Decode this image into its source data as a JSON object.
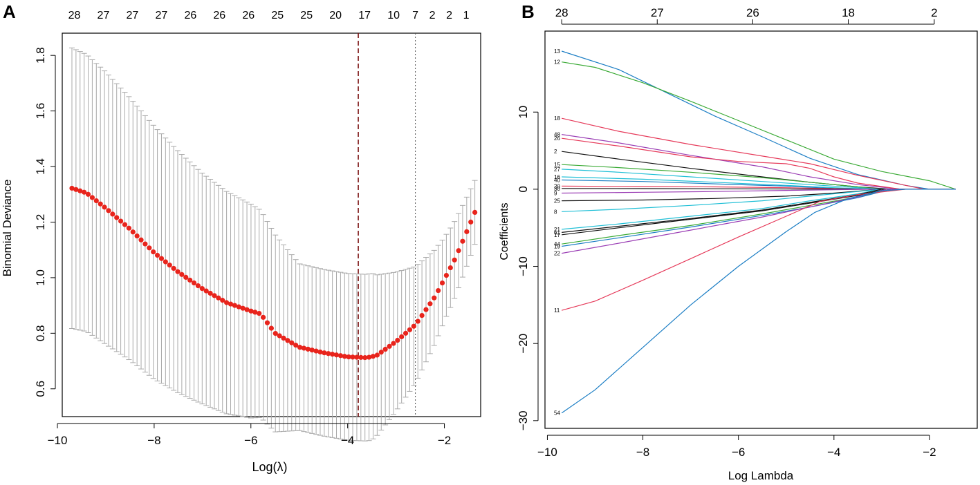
{
  "chart_data": [
    {
      "panel_label": "A",
      "type": "scatter",
      "xlabel": "Log(λ)",
      "ylabel": "Binomial Deviance",
      "xlim": [
        -9.9,
        -1.25
      ],
      "ylim": [
        0.5,
        1.88
      ],
      "xticks": [
        -10,
        -8,
        -6,
        -4,
        -2
      ],
      "yticks": [
        0.6,
        0.8,
        1.0,
        1.2,
        1.4,
        1.6,
        1.8
      ],
      "xtick_labels": [
        "−10",
        "−8",
        "−6",
        "−4",
        "−2"
      ],
      "ytick_labels": [
        "0.6",
        "0.8",
        "1.0",
        "1.2",
        "1.4",
        "1.6",
        "1.8"
      ],
      "top_labels": [
        "28",
        "27",
        "27",
        "27",
        "26",
        "26",
        "26",
        "25",
        "25",
        "20",
        "17",
        "10",
        "7",
        "2",
        "2",
        "1"
      ],
      "top_label_x": [
        -9.65,
        -9.05,
        -8.45,
        -7.85,
        -7.25,
        -6.65,
        -6.05,
        -5.45,
        -4.85,
        -4.25,
        -3.65,
        -3.05,
        -2.6,
        -2.25,
        -1.9,
        -1.55
      ],
      "lambda_min": -3.78,
      "lambda_1se": -2.6,
      "curve_knots": [
        [
          -9.7,
          1.322
        ],
        [
          -9.4,
          1.305
        ],
        [
          -9.0,
          1.25
        ],
        [
          -8.5,
          1.175
        ],
        [
          -8.0,
          1.09
        ],
        [
          -7.5,
          1.02
        ],
        [
          -7.0,
          0.96
        ],
        [
          -6.5,
          0.91
        ],
        [
          -6.0,
          0.88
        ],
        [
          -5.8,
          0.87
        ],
        [
          -5.5,
          0.8
        ],
        [
          -5.0,
          0.75
        ],
        [
          -4.5,
          0.73
        ],
        [
          -4.0,
          0.715
        ],
        [
          -3.6,
          0.712
        ],
        [
          -3.4,
          0.72
        ],
        [
          -3.0,
          0.77
        ],
        [
          -2.6,
          0.83
        ],
        [
          -2.2,
          0.93
        ],
        [
          -1.8,
          1.06
        ],
        [
          -1.6,
          1.14
        ],
        [
          -1.37,
          1.235
        ]
      ],
      "band_knots": [
        [
          -9.7,
          0.505
        ],
        [
          -9.0,
          0.49
        ],
        [
          -8.0,
          0.455
        ],
        [
          -7.0,
          0.415
        ],
        [
          -6.0,
          0.385
        ],
        [
          -5.5,
          0.355
        ],
        [
          -5.0,
          0.3
        ],
        [
          -4.5,
          0.3
        ],
        [
          -4.0,
          0.3
        ],
        [
          -3.5,
          0.3
        ],
        [
          -3.0,
          0.25
        ],
        [
          -2.5,
          0.2
        ],
        [
          -2.0,
          0.15
        ],
        [
          -1.37,
          0.115
        ]
      ],
      "point_count": 100
    },
    {
      "panel_label": "B",
      "type": "line",
      "xlabel": "Log Lambda",
      "ylabel": "Coefficients",
      "xlim": [
        -10.05,
        -1.0
      ],
      "ylim": [
        -31,
        20.5
      ],
      "xticks": [
        -10,
        -8,
        -6,
        -4,
        -2
      ],
      "yticks": [
        -30,
        -20,
        -10,
        0,
        10
      ],
      "xtick_labels": [
        "−10",
        "−8",
        "−6",
        "−4",
        "−2"
      ],
      "ytick_labels": [
        "−30",
        "−20",
        "−10",
        "0",
        "10"
      ],
      "top_labels": [
        "28",
        "27",
        "26",
        "18",
        "2"
      ],
      "top_label_x": [
        -9.7,
        -7.7,
        -5.7,
        -3.7,
        -1.9
      ],
      "x_start": -9.7,
      "series": [
        {
          "name": "13",
          "color": "#1a7dc4",
          "end": -2.0,
          "knots": [
            [
              -9.7,
              17.9
            ],
            [
              -8.5,
              15.5
            ],
            [
              -7.5,
              12.5
            ],
            [
              -6.5,
              9.5
            ],
            [
              -5.5,
              6.8
            ],
            [
              -4.5,
              4.0
            ],
            [
              -3.5,
              1.9
            ],
            [
              -2.5,
              0.5
            ],
            [
              -2.0,
              0
            ]
          ]
        },
        {
          "name": "12",
          "color": "#3aaa35",
          "end": -1.45,
          "knots": [
            [
              -9.7,
              16.5
            ],
            [
              -9.0,
              15.8
            ],
            [
              -8.0,
              13.8
            ],
            [
              -7.0,
              11.4
            ],
            [
              -6.0,
              8.9
            ],
            [
              -5.0,
              6.4
            ],
            [
              -4.0,
              3.9
            ],
            [
              -3.0,
              2.3
            ],
            [
              -2.0,
              1.1
            ],
            [
              -1.45,
              0
            ]
          ]
        },
        {
          "name": "18",
          "color": "#e63a5a",
          "end": -2.1,
          "knots": [
            [
              -9.7,
              9.2
            ],
            [
              -8.5,
              7.5
            ],
            [
              -7.0,
              5.8
            ],
            [
              -5.5,
              4.3
            ],
            [
              -4.5,
              3.3
            ],
            [
              -3.5,
              1.8
            ],
            [
              -2.5,
              0.5
            ],
            [
              -2.1,
              0
            ]
          ]
        },
        {
          "name": "48",
          "color": "#9b3fb5",
          "end": -2.6,
          "knots": [
            [
              -9.7,
              7.1
            ],
            [
              -8.5,
              6.0
            ],
            [
              -7.0,
              4.4
            ],
            [
              -5.5,
              2.9
            ],
            [
              -4.5,
              1.6
            ],
            [
              -3.5,
              0.6
            ],
            [
              -2.6,
              0
            ]
          ]
        },
        {
          "name": "26",
          "color": "#e63a5a",
          "end": -2.6,
          "knots": [
            [
              -9.7,
              6.6
            ],
            [
              -8.5,
              5.6
            ],
            [
              -7.0,
              4.2
            ],
            [
              -6.0,
              3.6
            ],
            [
              -5.0,
              3.3
            ],
            [
              -4.5,
              2.7
            ],
            [
              -4.0,
              1.6
            ],
            [
              -3.5,
              0.8
            ],
            [
              -2.6,
              0
            ]
          ]
        },
        {
          "name": "2",
          "color": "#111111",
          "end": -2.8,
          "knots": [
            [
              -9.7,
              4.9
            ],
            [
              -8.5,
              3.9
            ],
            [
              -7.0,
              2.7
            ],
            [
              -5.5,
              1.6
            ],
            [
              -4.5,
              0.9
            ],
            [
              -3.5,
              0.3
            ],
            [
              -2.8,
              0
            ]
          ]
        },
        {
          "name": "15",
          "color": "#3aaa35",
          "end": -3.0,
          "knots": [
            [
              -9.7,
              3.2
            ],
            [
              -8.5,
              2.8
            ],
            [
              -7.0,
              2.2
            ],
            [
              -5.5,
              1.5
            ],
            [
              -4.5,
              0.9
            ],
            [
              -3.5,
              0.3
            ],
            [
              -3.0,
              0
            ]
          ]
        },
        {
          "name": "27",
          "color": "#1fbfd6",
          "end": -3.0,
          "knots": [
            [
              -9.7,
              2.6
            ],
            [
              -8.5,
              2.2
            ],
            [
              -7.0,
              1.6
            ],
            [
              -5.5,
              1.0
            ],
            [
              -4.5,
              0.6
            ],
            [
              -3.5,
              0.2
            ],
            [
              -3.0,
              0
            ]
          ]
        },
        {
          "name": "16",
          "color": "#1fbfd6",
          "end": -3.2,
          "knots": [
            [
              -9.7,
              1.6
            ],
            [
              -8.0,
              1.3
            ],
            [
              -6.5,
              0.9
            ],
            [
              -5.0,
              0.5
            ],
            [
              -4.0,
              0.2
            ],
            [
              -3.2,
              0
            ]
          ]
        },
        {
          "name": "40",
          "color": "#1a7dc4",
          "end": -3.2,
          "knots": [
            [
              -9.7,
              1.2
            ],
            [
              -8.0,
              1.0
            ],
            [
              -6.5,
              0.7
            ],
            [
              -5.0,
              0.4
            ],
            [
              -4.0,
              0.1
            ],
            [
              -3.2,
              0
            ]
          ]
        },
        {
          "name": "20",
          "color": "#e63a5a",
          "end": -3.4,
          "knots": [
            [
              -9.7,
              0.4
            ],
            [
              -8.0,
              0.35
            ],
            [
              -6.5,
              0.3
            ],
            [
              -5.0,
              0.2
            ],
            [
              -3.4,
              0
            ]
          ]
        },
        {
          "name": "30",
          "color": "#111111",
          "end": -3.4,
          "knots": [
            [
              -9.7,
              0.1
            ],
            [
              -8.0,
              0.08
            ],
            [
              -6.0,
              0.05
            ],
            [
              -3.4,
              0
            ]
          ]
        },
        {
          "name": "9",
          "color": "#9b3fb5",
          "end": -3.2,
          "knots": [
            [
              -9.7,
              -0.5
            ],
            [
              -8.0,
              -0.4
            ],
            [
              -6.5,
              -0.3
            ],
            [
              -5.0,
              -0.15
            ],
            [
              -3.2,
              0
            ]
          ]
        },
        {
          "name": "25",
          "color": "#111111",
          "end": -3.0,
          "knots": [
            [
              -9.7,
              -1.5
            ],
            [
              -8.0,
              -1.4
            ],
            [
              -6.5,
              -1.2
            ],
            [
              -5.0,
              -0.9
            ],
            [
              -4.0,
              -0.5
            ],
            [
              -3.0,
              0
            ]
          ]
        },
        {
          "name": "8",
          "color": "#1fbfd6",
          "end": -3.0,
          "knots": [
            [
              -9.7,
              -2.9
            ],
            [
              -8.5,
              -2.6
            ],
            [
              -7.0,
              -2.1
            ],
            [
              -5.5,
              -1.5
            ],
            [
              -4.5,
              -0.9
            ],
            [
              -3.5,
              -0.3
            ],
            [
              -3.0,
              0
            ]
          ]
        },
        {
          "name": "21",
          "color": "#1fbfd6",
          "end": -3.0,
          "knots": [
            [
              -9.7,
              -5.2
            ],
            [
              -8.5,
              -4.5
            ],
            [
              -7.0,
              -3.5
            ],
            [
              -5.5,
              -2.5
            ],
            [
              -4.5,
              -1.5
            ],
            [
              -3.5,
              -0.6
            ],
            [
              -3.0,
              0
            ]
          ]
        },
        {
          "name": "61",
          "color": "#111111",
          "end": -3.0,
          "knots": [
            [
              -9.7,
              -5.6
            ],
            [
              -8.5,
              -4.8
            ],
            [
              -7.0,
              -3.8
            ],
            [
              -5.5,
              -2.7
            ],
            [
              -4.5,
              -1.7
            ],
            [
              -3.5,
              -0.7
            ],
            [
              -3.0,
              0
            ]
          ]
        },
        {
          "name": "17",
          "color": "#111111",
          "end": -2.9,
          "knots": [
            [
              -9.7,
              -5.9
            ],
            [
              -8.5,
              -5.0
            ],
            [
              -7.0,
              -3.9
            ],
            [
              -5.5,
              -2.8
            ],
            [
              -4.5,
              -1.8
            ],
            [
              -3.5,
              -0.8
            ],
            [
              -2.9,
              0
            ]
          ]
        },
        {
          "name": "44",
          "color": "#3aaa35",
          "end": -2.8,
          "knots": [
            [
              -9.7,
              -7.1
            ],
            [
              -8.5,
              -6.0
            ],
            [
              -7.0,
              -4.7
            ],
            [
              -5.5,
              -3.2
            ],
            [
              -4.5,
              -2.1
            ],
            [
              -3.5,
              -1.0
            ],
            [
              -2.8,
              0
            ]
          ]
        },
        {
          "name": "19",
          "color": "#1a7dc4",
          "end": -2.8,
          "knots": [
            [
              -9.7,
              -7.4
            ],
            [
              -8.5,
              -6.3
            ],
            [
              -7.0,
              -4.9
            ],
            [
              -5.5,
              -3.4
            ],
            [
              -4.5,
              -2.3
            ],
            [
              -3.5,
              -1.1
            ],
            [
              -2.8,
              0
            ]
          ]
        },
        {
          "name": "22",
          "color": "#9b3fb5",
          "end": -2.9,
          "knots": [
            [
              -9.7,
              -8.3
            ],
            [
              -8.5,
              -7.0
            ],
            [
              -7.0,
              -5.3
            ],
            [
              -5.5,
              -3.6
            ],
            [
              -4.5,
              -2.3
            ],
            [
              -3.5,
              -1.0
            ],
            [
              -2.9,
              0
            ]
          ]
        },
        {
          "name": "11",
          "color": "#e63a5a",
          "end": -2.5,
          "knots": [
            [
              -9.7,
              -15.7
            ],
            [
              -9.0,
              -14.5
            ],
            [
              -8.0,
              -11.8
            ],
            [
              -7.0,
              -9.0
            ],
            [
              -6.0,
              -6.2
            ],
            [
              -5.0,
              -3.5
            ],
            [
              -4.3,
              -1.6
            ],
            [
              -3.5,
              -0.7
            ],
            [
              -2.5,
              0
            ]
          ]
        },
        {
          "name": "54",
          "color": "#1a7dc4",
          "end": -2.5,
          "knots": [
            [
              -9.7,
              -29.0
            ],
            [
              -9.0,
              -26.0
            ],
            [
              -8.0,
              -20.5
            ],
            [
              -7.0,
              -15.0
            ],
            [
              -6.0,
              -10.0
            ],
            [
              -5.0,
              -5.5
            ],
            [
              -4.4,
              -3.0
            ],
            [
              -3.7,
              -1.2
            ],
            [
              -3.0,
              -0.2
            ],
            [
              -2.5,
              0
            ]
          ]
        }
      ]
    }
  ]
}
